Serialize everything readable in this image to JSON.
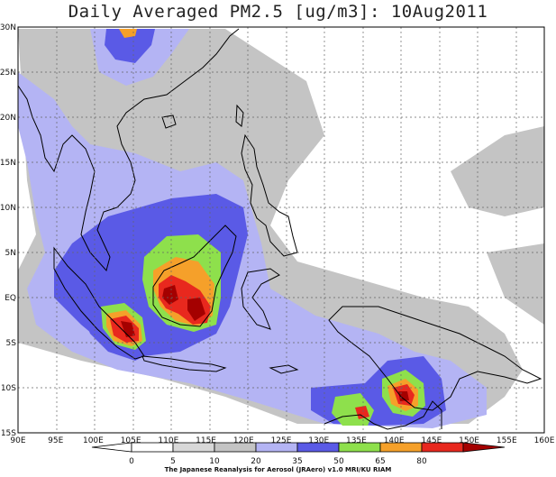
{
  "title": "Daily Averaged PM2.5 [ug/m3]: 10Aug2011",
  "map": {
    "lon_range": [
      90,
      160
    ],
    "lat_range": [
      -15,
      30
    ],
    "lon_ticks": [
      "90E",
      "95E",
      "100E",
      "105E",
      "110E",
      "115E",
      "120E",
      "125E",
      "130E",
      "135E",
      "140E",
      "145E",
      "150E",
      "155E",
      "160E"
    ],
    "lat_ticks": [
      "30N",
      "25N",
      "20N",
      "15N",
      "10N",
      "5N",
      "EQ",
      "5S",
      "10S",
      "15S"
    ]
  },
  "colorbar": {
    "labels": [
      "0",
      "5",
      "10",
      "20",
      "35",
      "50",
      "65",
      "80"
    ],
    "colors": [
      "#ffffff",
      "#d8d8d8",
      "#c4c4c4",
      "#b4b4f4",
      "#5a5ae6",
      "#8ee04c",
      "#f5a02a",
      "#e8281e",
      "#a40000"
    ]
  },
  "credit": "The Japanese Reanalysis for Aerosol (JRAero) v1.0 MRI/KU RIAM"
}
